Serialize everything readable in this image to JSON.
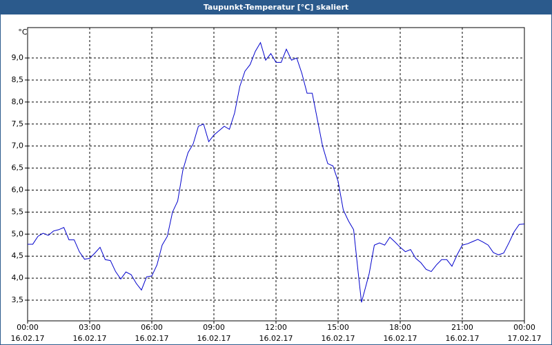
{
  "chart_data": {
    "type": "line",
    "title": "Taupunkt-Temperatur [°C] skaliert",
    "y_unit": "°C",
    "color": "#0000cc",
    "grid": true,
    "xlim": [
      0,
      24
    ],
    "ylim": [
      3.03,
      9.69
    ],
    "xticks": [
      {
        "value": 0,
        "label": "00:00",
        "date": "16.02.17"
      },
      {
        "value": 3,
        "label": "03:00",
        "date": "16.02.17"
      },
      {
        "value": 6,
        "label": "06:00",
        "date": "16.02.17"
      },
      {
        "value": 9,
        "label": "09:00",
        "date": "16.02.17"
      },
      {
        "value": 12,
        "label": "12:00",
        "date": "16.02.17"
      },
      {
        "value": 15,
        "label": "15:00",
        "date": "16.02.17"
      },
      {
        "value": 18,
        "label": "18:00",
        "date": "16.02.17"
      },
      {
        "value": 21,
        "label": "21:00",
        "date": "16.02.17"
      },
      {
        "value": 24,
        "label": "00:00",
        "date": "17.02.17"
      }
    ],
    "yticks": [
      {
        "value": 3.5,
        "label": "3,5"
      },
      {
        "value": 4.0,
        "label": "4,0"
      },
      {
        "value": 4.5,
        "label": "4,5"
      },
      {
        "value": 5.0,
        "label": "5,0"
      },
      {
        "value": 5.5,
        "label": "5,5"
      },
      {
        "value": 6.0,
        "label": "6,0"
      },
      {
        "value": 6.5,
        "label": "6,5"
      },
      {
        "value": 7.0,
        "label": "7,0"
      },
      {
        "value": 7.5,
        "label": "7,5"
      },
      {
        "value": 8.0,
        "label": "8,0"
      },
      {
        "value": 8.5,
        "label": "8,5"
      },
      {
        "value": 9.0,
        "label": "9,0"
      }
    ],
    "x": [
      0,
      0.25,
      0.5,
      0.75,
      1,
      1.25,
      1.5,
      1.75,
      2,
      2.25,
      2.5,
      2.75,
      3,
      3.25,
      3.5,
      3.75,
      4,
      4.25,
      4.5,
      4.75,
      5,
      5.25,
      5.5,
      5.75,
      6,
      6.25,
      6.5,
      6.75,
      7,
      7.25,
      7.5,
      7.75,
      8,
      8.25,
      8.5,
      8.75,
      9,
      9.25,
      9.5,
      9.75,
      10,
      10.25,
      10.5,
      10.75,
      11,
      11.25,
      11.5,
      11.75,
      12,
      12.25,
      12.5,
      12.75,
      13,
      13.25,
      13.5,
      13.75,
      14,
      14.25,
      14.5,
      14.75,
      15,
      15.25,
      15.5,
      15.75,
      16,
      16.13,
      16.5,
      16.75,
      17,
      17.25,
      17.5,
      17.75,
      18,
      18.25,
      18.5,
      18.75,
      19,
      19.25,
      19.5,
      19.75,
      20,
      20.25,
      20.5,
      20.75,
      21,
      21.25,
      21.5,
      21.75,
      22,
      22.25,
      22.5,
      22.75,
      23,
      23.25,
      23.5,
      23.75,
      24
    ],
    "values": [
      4.77,
      4.77,
      4.95,
      5.02,
      4.97,
      5.07,
      5.1,
      5.15,
      4.87,
      4.87,
      4.6,
      4.43,
      4.45,
      4.57,
      4.7,
      4.42,
      4.4,
      4.15,
      3.98,
      4.14,
      4.08,
      3.88,
      3.73,
      4.03,
      4.05,
      4.3,
      4.75,
      4.95,
      5.5,
      5.75,
      6.45,
      6.85,
      7.05,
      7.45,
      7.5,
      7.1,
      7.25,
      7.35,
      7.45,
      7.38,
      7.75,
      8.35,
      8.7,
      8.85,
      9.15,
      9.35,
      8.95,
      9.1,
      8.9,
      8.9,
      9.2,
      8.95,
      9.0,
      8.65,
      8.2,
      8.2,
      7.6,
      7.0,
      6.6,
      6.55,
      6.2,
      5.55,
      5.3,
      5.1,
      4.0,
      3.45,
      4.1,
      4.75,
      4.8,
      4.75,
      4.93,
      4.82,
      4.7,
      4.6,
      4.65,
      4.45,
      4.35,
      4.2,
      4.15,
      4.3,
      4.42,
      4.42,
      4.27,
      4.53,
      4.75,
      4.78,
      4.83,
      4.88,
      4.82,
      4.75,
      4.58,
      4.53,
      4.57,
      4.8,
      5.05,
      5.22,
      5.23
    ]
  }
}
